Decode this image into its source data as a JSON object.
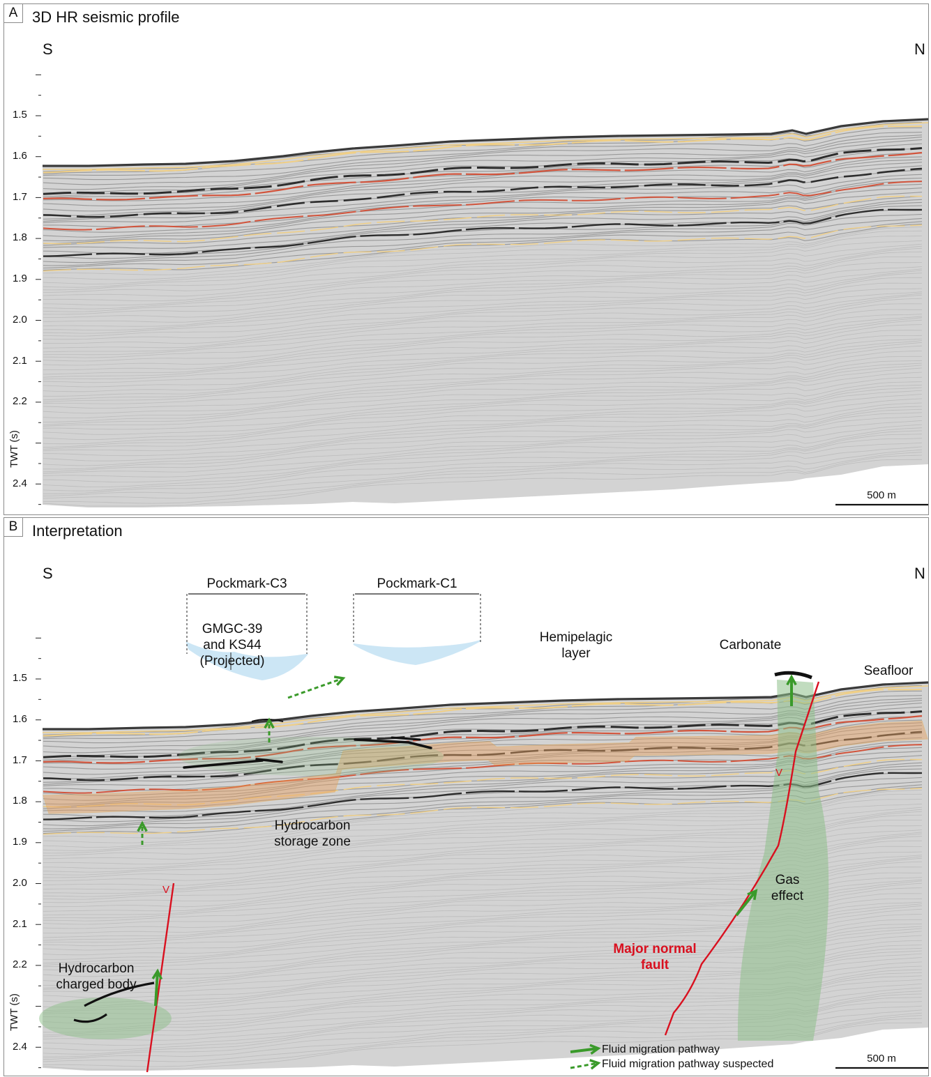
{
  "panel_a": {
    "letter": "A",
    "title": "3D HR seismic profile",
    "left_dir": "S",
    "right_dir": "N",
    "y_axis_label": "TWT (s)",
    "y_ticks": [
      "1.5",
      "1.6",
      "1.7",
      "1.8",
      "1.9",
      "2.0",
      "2.1",
      "2.2",
      "2.4"
    ],
    "scale_bar": "500 m"
  },
  "panel_b": {
    "letter": "B",
    "title": "Interpretation",
    "left_dir": "S",
    "right_dir": "N",
    "y_axis_label": "TWT (s)",
    "y_ticks": [
      "1.5",
      "1.6",
      "1.7",
      "1.8",
      "1.9",
      "2.0",
      "2.1",
      "2.2",
      "2.4"
    ],
    "scale_bar": "500 m",
    "labels": {
      "pockmark_c3": "Pockmark-C3",
      "pockmark_c1": "Pockmark-C1",
      "gmgc_1": "GMGC-39",
      "gmgc_2": "and KS44",
      "gmgc_3": "(Projected)",
      "hemipelagic_1": "Hemipelagic",
      "hemipelagic_2": "layer",
      "carbonate": "Carbonate",
      "seafloor": "Seafloor",
      "storage_1": "Hydrocarbon",
      "storage_2": "storage zone",
      "charged_1": "Hydrocarbon",
      "charged_2": "charged body",
      "gas_1": "Gas",
      "gas_2": "effect",
      "fault_1": "Major normal",
      "fault_2": "fault",
      "fault_sense": "V"
    },
    "legend": {
      "solid": "Fluid migration pathway",
      "dashed": "Fluid migration pathway suspected"
    }
  },
  "colors": {
    "background": "#d3d3d3",
    "seafloor": "#3a3a3a",
    "reflector_dark": "#2d2d2d",
    "reflector_red": "#d2543c",
    "reflector_yellow": "#f0cf86",
    "pockmark": "#3aa0d8",
    "hemipelagic": "#e8a060",
    "fluid_arrow": "#3a9a2a",
    "gas_zone": "#8ec08a",
    "fault": "#d9101f"
  }
}
